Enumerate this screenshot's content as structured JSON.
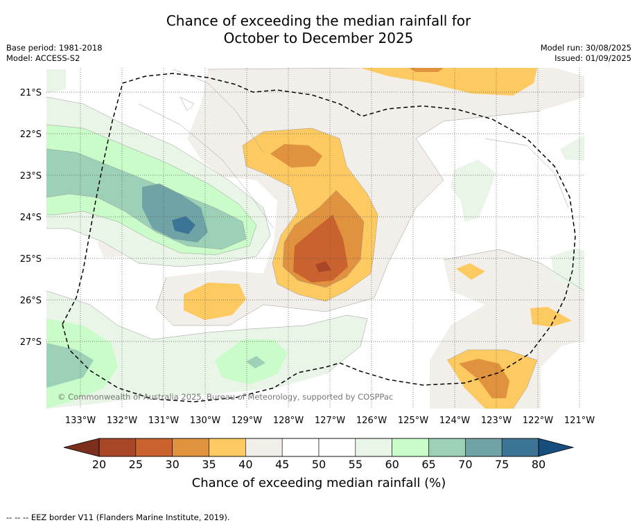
{
  "title": {
    "line1": "Chance of exceeding the median rainfall for",
    "line2": "October to December 2025"
  },
  "meta_left": {
    "base_period": "Base period: 1981-2018",
    "model": "Model: ACCESS-S2"
  },
  "meta_right": {
    "model_run": "Model run: 30/08/2025",
    "issued": "Issued: 01/09/2025"
  },
  "lat_labels": [
    "21°S",
    "22°S",
    "23°S",
    "24°S",
    "25°S",
    "26°S",
    "27°S"
  ],
  "lon_labels": [
    "133°W",
    "132°W",
    "131°W",
    "130°W",
    "129°W",
    "128°W",
    "127°W",
    "126°W",
    "125°W",
    "124°W",
    "123°W",
    "122°W",
    "121°W"
  ],
  "copyright": "© Commonwealth of Australia 2025, Bureau of Meteorology, supported by COSPPac",
  "colorbar": {
    "ticks": [
      "20",
      "25",
      "30",
      "35",
      "40",
      "45",
      "50",
      "55",
      "60",
      "65",
      "70",
      "75",
      "80"
    ],
    "label": "Chance of exceeding median rainfall (%)",
    "colors": [
      "#a84628",
      "#c9622f",
      "#e0923e",
      "#fdc961",
      "#f2eee9",
      "#ffffff",
      "#ffffff",
      "#e9f5e7",
      "#c9fcc8",
      "#9cd1b7",
      "#6fa3a5",
      "#3c7495"
    ],
    "under_color": "#7c2f1c",
    "over_color": "#184e7e"
  },
  "footer": "--  --  -- EEZ border V11 (Flanders Marine Institute, 2019)."
}
